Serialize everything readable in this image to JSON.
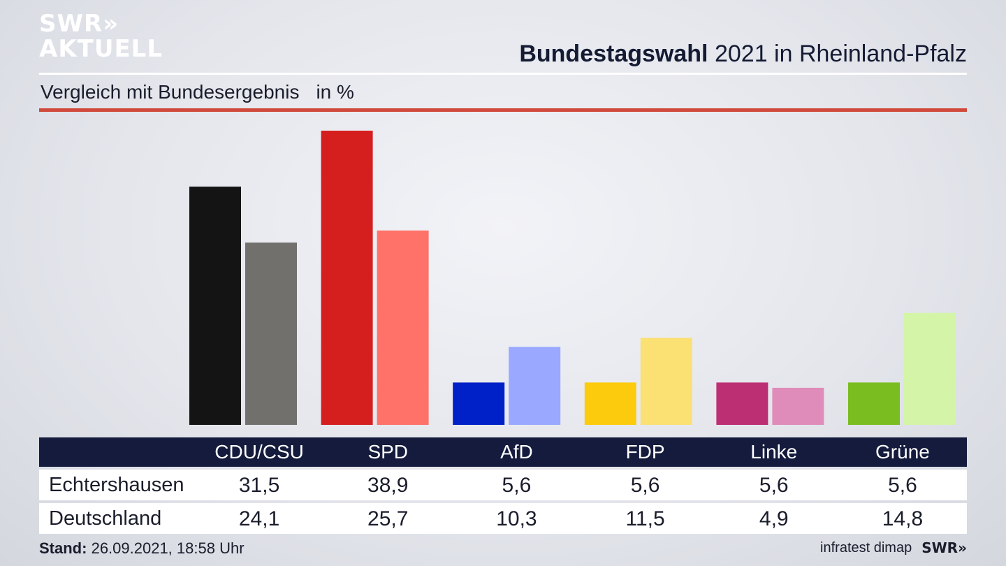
{
  "header": {
    "logo_line1": "SWR»",
    "logo_line2": "AKTUELL",
    "title_bold": "Bundestagswahl",
    "title_rest": "2021 in Rheinland-Pfalz",
    "subtitle": "Vergleich mit Bundesergebnis",
    "unit": "in %"
  },
  "colors": {
    "accent_rule": "#d0493a",
    "table_header": "#141b3d"
  },
  "chart_data": {
    "type": "bar",
    "title": "Bundestagswahl 2021 in Rheinland-Pfalz",
    "subtitle": "Vergleich mit Bundesergebnis in %",
    "categories": [
      "CDU/CSU",
      "SPD",
      "AfD",
      "FDP",
      "Linke",
      "Grüne"
    ],
    "series": [
      {
        "name": "Echtershausen",
        "values": [
          31.5,
          38.9,
          5.6,
          5.6,
          5.6,
          5.6
        ],
        "colors": [
          "#141414",
          "#d51f1f",
          "#0020c8",
          "#fdcb0d",
          "#bd2f73",
          "#79bd20"
        ]
      },
      {
        "name": "Deutschland",
        "values": [
          24.1,
          25.7,
          10.3,
          11.5,
          4.9,
          14.8
        ],
        "colors": [
          "#71706d",
          "#ff7269",
          "#9aa8ff",
          "#fbe073",
          "#e08cba",
          "#d4f5a8"
        ]
      }
    ],
    "ylim": [
      0,
      38.9
    ],
    "grid": false,
    "legend": "table-below"
  },
  "table": {
    "headers": [
      "CDU/CSU",
      "SPD",
      "AfD",
      "FDP",
      "Linke",
      "Grüne"
    ],
    "rows": [
      {
        "label": "Echtershausen",
        "values": [
          "31,5",
          "38,9",
          "5,6",
          "5,6",
          "5,6",
          "5,6"
        ]
      },
      {
        "label": "Deutschland",
        "values": [
          "24,1",
          "25,7",
          "10,3",
          "11,5",
          "4,9",
          "14,8"
        ]
      }
    ]
  },
  "footer": {
    "stand_label": "Stand:",
    "stand_value": "26.09.2021, 18:58 Uhr",
    "source": "infratest dimap",
    "brand": "SWR»"
  }
}
